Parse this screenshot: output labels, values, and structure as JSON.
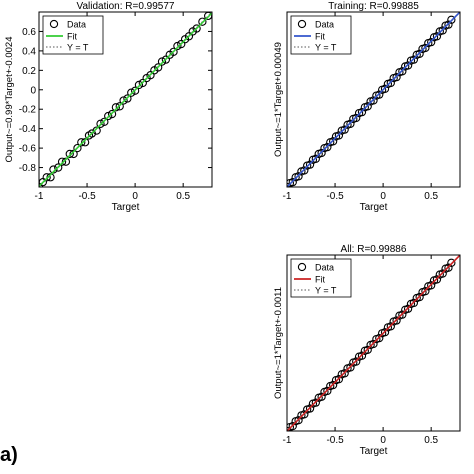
{
  "figure_label": "a)",
  "chart_data": [
    {
      "type": "scatter",
      "title": "Validation: R=0.99577",
      "xlabel": "Target",
      "ylabel": "Output~=0.99*Target+-0.0024",
      "xlim": [
        -1,
        0.8
      ],
      "ylim": [
        -1,
        0.8
      ],
      "xticks": [
        -1,
        -0.5,
        0,
        0.5
      ],
      "xtick_labels": [
        "-1",
        "-0.5",
        "0",
        "0.5"
      ],
      "yticks": [
        -0.8,
        -0.6,
        -0.4,
        -0.2,
        0,
        0.2,
        0.4,
        0.6
      ],
      "ytick_labels": [
        "-0.8",
        "-0.6",
        "-0.4",
        "-0.2",
        "0",
        "0.2",
        "0.4",
        "0.6"
      ],
      "fit": {
        "slope": 0.99,
        "intercept": -0.0024
      },
      "legend": {
        "location": "top-left",
        "entries": [
          "Data",
          "Fit",
          "Y = T"
        ]
      },
      "fit_color": "#33cc33",
      "series": [
        {
          "name": "Data",
          "x": [
            -1,
            -0.96,
            -0.92,
            -0.88,
            -0.85,
            -0.8,
            -0.76,
            -0.72,
            -0.68,
            -0.64,
            -0.6,
            -0.56,
            -0.52,
            -0.48,
            -0.45,
            -0.4,
            -0.36,
            -0.32,
            -0.28,
            -0.24,
            -0.2,
            -0.16,
            -0.12,
            -0.08,
            -0.04,
            0,
            0.04,
            0.08,
            0.12,
            0.16,
            0.2,
            0.24,
            0.28,
            0.32,
            0.36,
            0.4,
            0.44,
            0.48,
            0.52,
            0.56,
            0.6,
            0.64,
            0.7,
            0.76
          ],
          "y": [
            -1,
            -0.95,
            -0.9,
            -0.9,
            -0.82,
            -0.8,
            -0.74,
            -0.74,
            -0.66,
            -0.66,
            -0.6,
            -0.54,
            -0.54,
            -0.47,
            -0.45,
            -0.42,
            -0.35,
            -0.33,
            -0.27,
            -0.25,
            -0.18,
            -0.17,
            -0.11,
            -0.09,
            -0.03,
            -0.01,
            0.05,
            0.07,
            0.12,
            0.15,
            0.2,
            0.23,
            0.29,
            0.31,
            0.36,
            0.39,
            0.45,
            0.47,
            0.52,
            0.55,
            0.6,
            0.63,
            0.7,
            0.76
          ]
        },
        {
          "name": "Fit",
          "line": "solid"
        },
        {
          "name": "Y = T",
          "line": "dotted"
        }
      ]
    },
    {
      "type": "scatter",
      "title": "Training: R=0.99885",
      "xlabel": "Target",
      "ylabel": "Output~=1*Target+0.00049",
      "xlim": [
        -1,
        0.8
      ],
      "ylim": [
        -1,
        0.8
      ],
      "xticks": [
        -1,
        -0.5,
        0,
        0.5
      ],
      "xtick_labels": [
        "-1",
        "-0.5",
        "0",
        "0.5"
      ],
      "yticks": [],
      "ytick_labels": [],
      "fit": {
        "slope": 1,
        "intercept": 0.00049
      },
      "legend": {
        "location": "top-left",
        "entries": [
          "Data",
          "Fit",
          "Y = T"
        ]
      },
      "fit_color": "#3355cc",
      "series": [
        {
          "name": "Data",
          "x": [
            -1,
            -0.97,
            -0.94,
            -0.91,
            -0.88,
            -0.85,
            -0.82,
            -0.79,
            -0.76,
            -0.73,
            -0.7,
            -0.67,
            -0.64,
            -0.61,
            -0.58,
            -0.55,
            -0.52,
            -0.49,
            -0.46,
            -0.43,
            -0.4,
            -0.37,
            -0.34,
            -0.31,
            -0.28,
            -0.25,
            -0.22,
            -0.19,
            -0.16,
            -0.13,
            -0.1,
            -0.07,
            -0.04,
            -0.01,
            0.02,
            0.05,
            0.08,
            0.11,
            0.14,
            0.17,
            0.2,
            0.23,
            0.26,
            0.29,
            0.32,
            0.35,
            0.38,
            0.41,
            0.44,
            0.47,
            0.5,
            0.53,
            0.56,
            0.59,
            0.62,
            0.65,
            0.68,
            0.71
          ],
          "y": [
            -1,
            -0.96,
            -0.95,
            -0.9,
            -0.89,
            -0.84,
            -0.83,
            -0.78,
            -0.77,
            -0.72,
            -0.71,
            -0.66,
            -0.65,
            -0.6,
            -0.59,
            -0.54,
            -0.53,
            -0.48,
            -0.47,
            -0.42,
            -0.41,
            -0.36,
            -0.35,
            -0.3,
            -0.29,
            -0.24,
            -0.23,
            -0.18,
            -0.17,
            -0.12,
            -0.11,
            -0.06,
            -0.05,
            0,
            0.01,
            0.06,
            0.07,
            0.12,
            0.13,
            0.18,
            0.19,
            0.24,
            0.25,
            0.3,
            0.31,
            0.36,
            0.37,
            0.42,
            0.43,
            0.48,
            0.49,
            0.54,
            0.55,
            0.6,
            0.61,
            0.66,
            0.67,
            0.72
          ]
        },
        {
          "name": "Fit",
          "line": "solid"
        },
        {
          "name": "Y = T",
          "line": "dotted"
        }
      ]
    },
    {
      "type": "scatter",
      "title": "All: R=0.99886",
      "xlabel": "Target",
      "ylabel": "Output~=1*Target+-0.0011",
      "xlim": [
        -1,
        0.8
      ],
      "ylim": [
        -1,
        0.8
      ],
      "xticks": [
        -1,
        -0.5,
        0,
        0.5
      ],
      "xtick_labels": [
        "-1",
        "-0.5",
        "0",
        "0.5"
      ],
      "yticks": [],
      "ytick_labels": [],
      "fit": {
        "slope": 1,
        "intercept": -0.0011
      },
      "legend": {
        "location": "top-left",
        "entries": [
          "Data",
          "Fit",
          "Y = T"
        ]
      },
      "fit_color": "#cc2222",
      "series": [
        {
          "name": "Data",
          "x": [
            -1,
            -0.97,
            -0.94,
            -0.91,
            -0.88,
            -0.85,
            -0.82,
            -0.79,
            -0.76,
            -0.73,
            -0.7,
            -0.67,
            -0.64,
            -0.61,
            -0.58,
            -0.55,
            -0.52,
            -0.49,
            -0.46,
            -0.43,
            -0.4,
            -0.37,
            -0.34,
            -0.31,
            -0.28,
            -0.25,
            -0.22,
            -0.19,
            -0.16,
            -0.13,
            -0.1,
            -0.07,
            -0.04,
            -0.01,
            0.02,
            0.05,
            0.08,
            0.11,
            0.14,
            0.17,
            0.2,
            0.23,
            0.26,
            0.29,
            0.32,
            0.35,
            0.38,
            0.41,
            0.44,
            0.47,
            0.5,
            0.53,
            0.56,
            0.59,
            0.62,
            0.65,
            0.68,
            0.71
          ],
          "y": [
            -1,
            -0.96,
            -0.95,
            -0.9,
            -0.89,
            -0.84,
            -0.83,
            -0.78,
            -0.77,
            -0.72,
            -0.71,
            -0.66,
            -0.65,
            -0.6,
            -0.59,
            -0.54,
            -0.53,
            -0.48,
            -0.47,
            -0.42,
            -0.41,
            -0.36,
            -0.35,
            -0.3,
            -0.29,
            -0.24,
            -0.23,
            -0.18,
            -0.17,
            -0.12,
            -0.11,
            -0.06,
            -0.05,
            0,
            0.01,
            0.06,
            0.07,
            0.12,
            0.13,
            0.18,
            0.19,
            0.24,
            0.25,
            0.3,
            0.31,
            0.36,
            0.37,
            0.42,
            0.43,
            0.48,
            0.49,
            0.54,
            0.55,
            0.6,
            0.61,
            0.66,
            0.67,
            0.72
          ]
        },
        {
          "name": "Fit",
          "line": "solid"
        },
        {
          "name": "Y = T",
          "line": "dotted"
        }
      ]
    }
  ]
}
